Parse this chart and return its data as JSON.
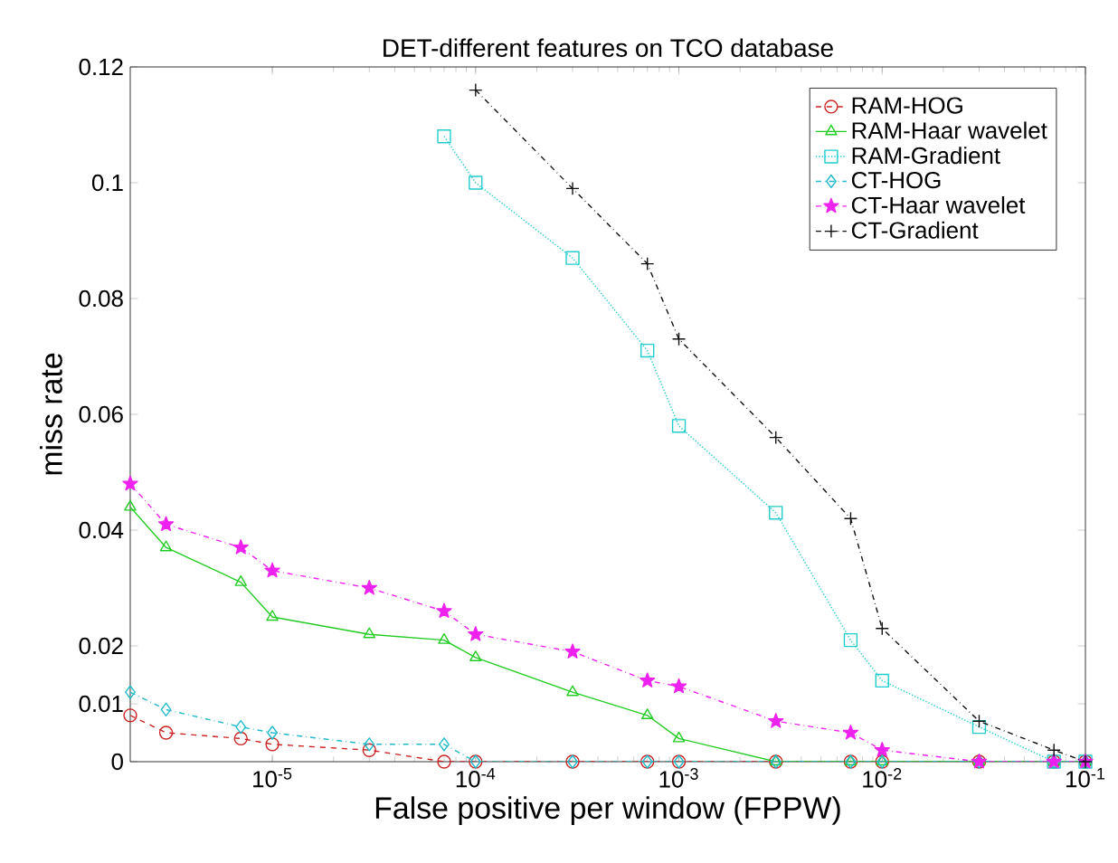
{
  "chart_data": {
    "type": "line",
    "title": "DET-different features on TCO database",
    "xlabel": "False positive per window (FPPW)",
    "ylabel": "miss rate",
    "x": [
      2e-06,
      3e-06,
      7e-06,
      1e-05,
      3e-05,
      7e-05,
      0.0001,
      0.0003,
      0.0007,
      0.001,
      0.003,
      0.007,
      0.01,
      0.03,
      0.07,
      0.1
    ],
    "series": [
      {
        "name": "RAM-HOG",
        "color": "#cc2222",
        "marker": "circle",
        "line_style": "dashed",
        "values": [
          0.008,
          0.005,
          0.004,
          0.003,
          0.002,
          0,
          0,
          0,
          0,
          0,
          0,
          0,
          0,
          0,
          0,
          0
        ]
      },
      {
        "name": "RAM-Haar wavelet",
        "color": "#22cc22",
        "marker": "triangle",
        "line_style": "solid",
        "values": [
          0.044,
          0.037,
          0.031,
          0.025,
          0.022,
          0.021,
          0.018,
          0.012,
          0.008,
          0.004,
          0,
          0,
          0,
          0,
          0,
          0
        ]
      },
      {
        "name": "RAM-Gradient",
        "color": "#22cccc",
        "marker": "square",
        "line_style": "dotted",
        "values": [
          null,
          null,
          null,
          null,
          null,
          0.108,
          0.1,
          0.087,
          0.071,
          0.058,
          0.043,
          0.021,
          0.014,
          0.006,
          0,
          0
        ]
      },
      {
        "name": "CT-HOG",
        "color": "#22bbcc",
        "marker": "diamond",
        "line_style": "dashdot",
        "values": [
          0.012,
          0.009,
          0.006,
          0.005,
          0.003,
          0.003,
          0,
          0,
          0,
          0,
          0,
          0,
          0,
          0,
          0,
          0
        ]
      },
      {
        "name": "CT-Haar wavelet",
        "color": "#ee22ee",
        "marker": "star",
        "line_style": "dashdot",
        "values": [
          0.048,
          0.041,
          0.037,
          0.033,
          0.03,
          0.026,
          0.022,
          0.019,
          0.014,
          0.013,
          0.007,
          0.005,
          0.002,
          0,
          0,
          0
        ]
      },
      {
        "name": "CT-Gradient",
        "color": "#111111",
        "marker": "cross",
        "line_style": "dashdot",
        "values": [
          null,
          null,
          null,
          null,
          null,
          null,
          0.116,
          0.099,
          0.086,
          0.073,
          0.056,
          0.042,
          0.023,
          0.007,
          0.002,
          0
        ]
      }
    ],
    "log": "x",
    "xlim": [
      2e-06,
      0.1
    ],
    "ylim": [
      0,
      0.12
    ],
    "xticks": [
      {
        "value": 1e-05,
        "label": "10$^{-5}$"
      },
      {
        "value": 0.0001,
        "label": "10$^{-4}$"
      },
      {
        "value": 0.001,
        "label": "10$^{-3}$"
      },
      {
        "value": 0.01,
        "label": "10$^{-2}$"
      },
      {
        "value": 0.1,
        "label": "10$^{-1}$"
      }
    ],
    "yticks": [
      0,
      0.01,
      0.02,
      0.04,
      0.06,
      0.08,
      0.1,
      0.12
    ],
    "grid": false,
    "legend": "top right"
  }
}
